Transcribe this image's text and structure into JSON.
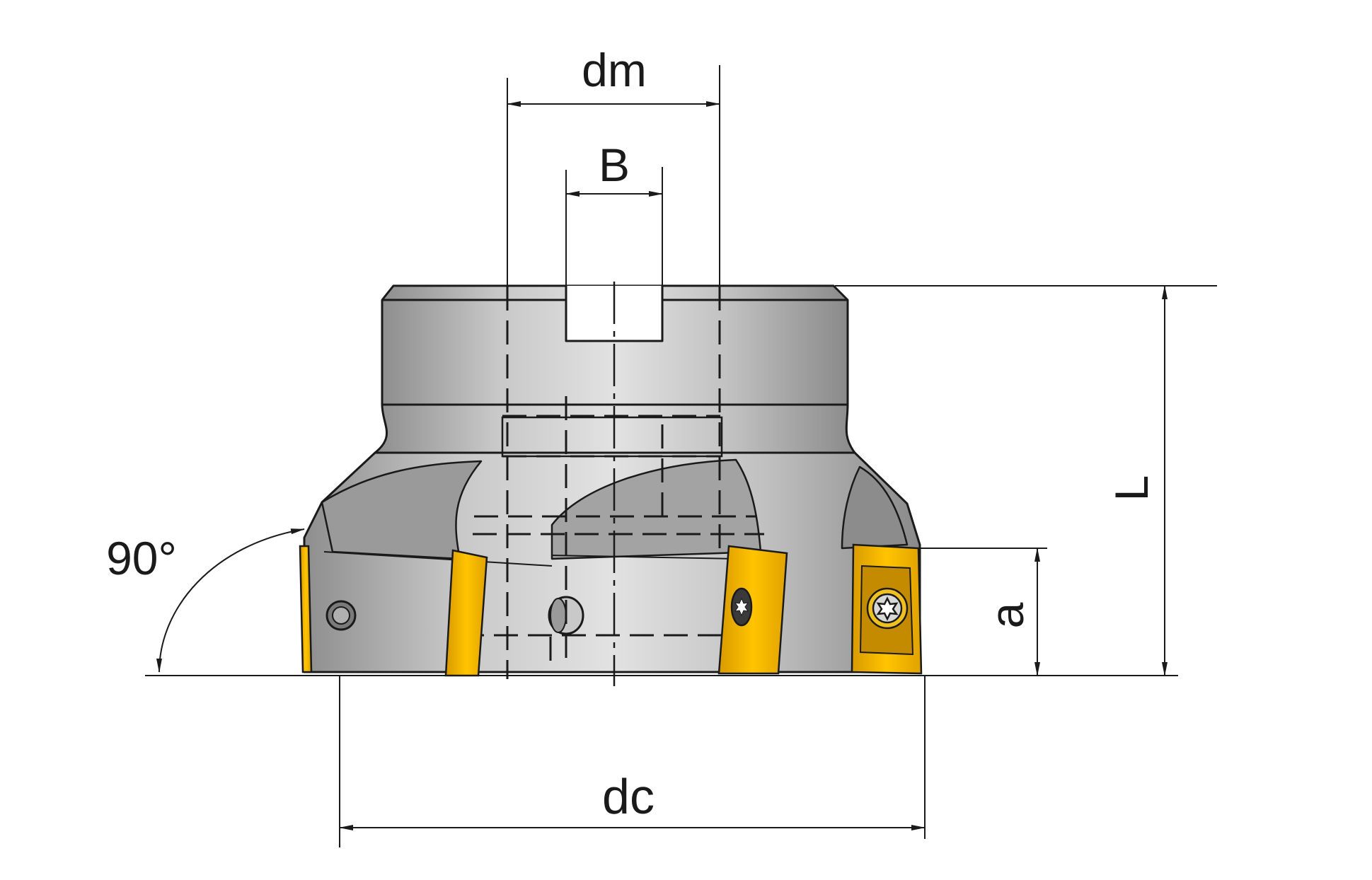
{
  "labels": {
    "dm": "dm",
    "b": "B",
    "l": "L",
    "a": "a",
    "dc": "dc",
    "angle": "90°"
  },
  "colors": {
    "background": "#ffffff",
    "line": "#1a1a1a",
    "body_light": "#d8d8d8",
    "body_mid": "#b4b4b4",
    "body_dark": "#8e8e8e",
    "insert_gold": "#f5b800",
    "insert_shadow": "#c48a00"
  },
  "icons": {
    "screw": "torx-screw-icon",
    "insert": "cutting-insert-icon"
  }
}
